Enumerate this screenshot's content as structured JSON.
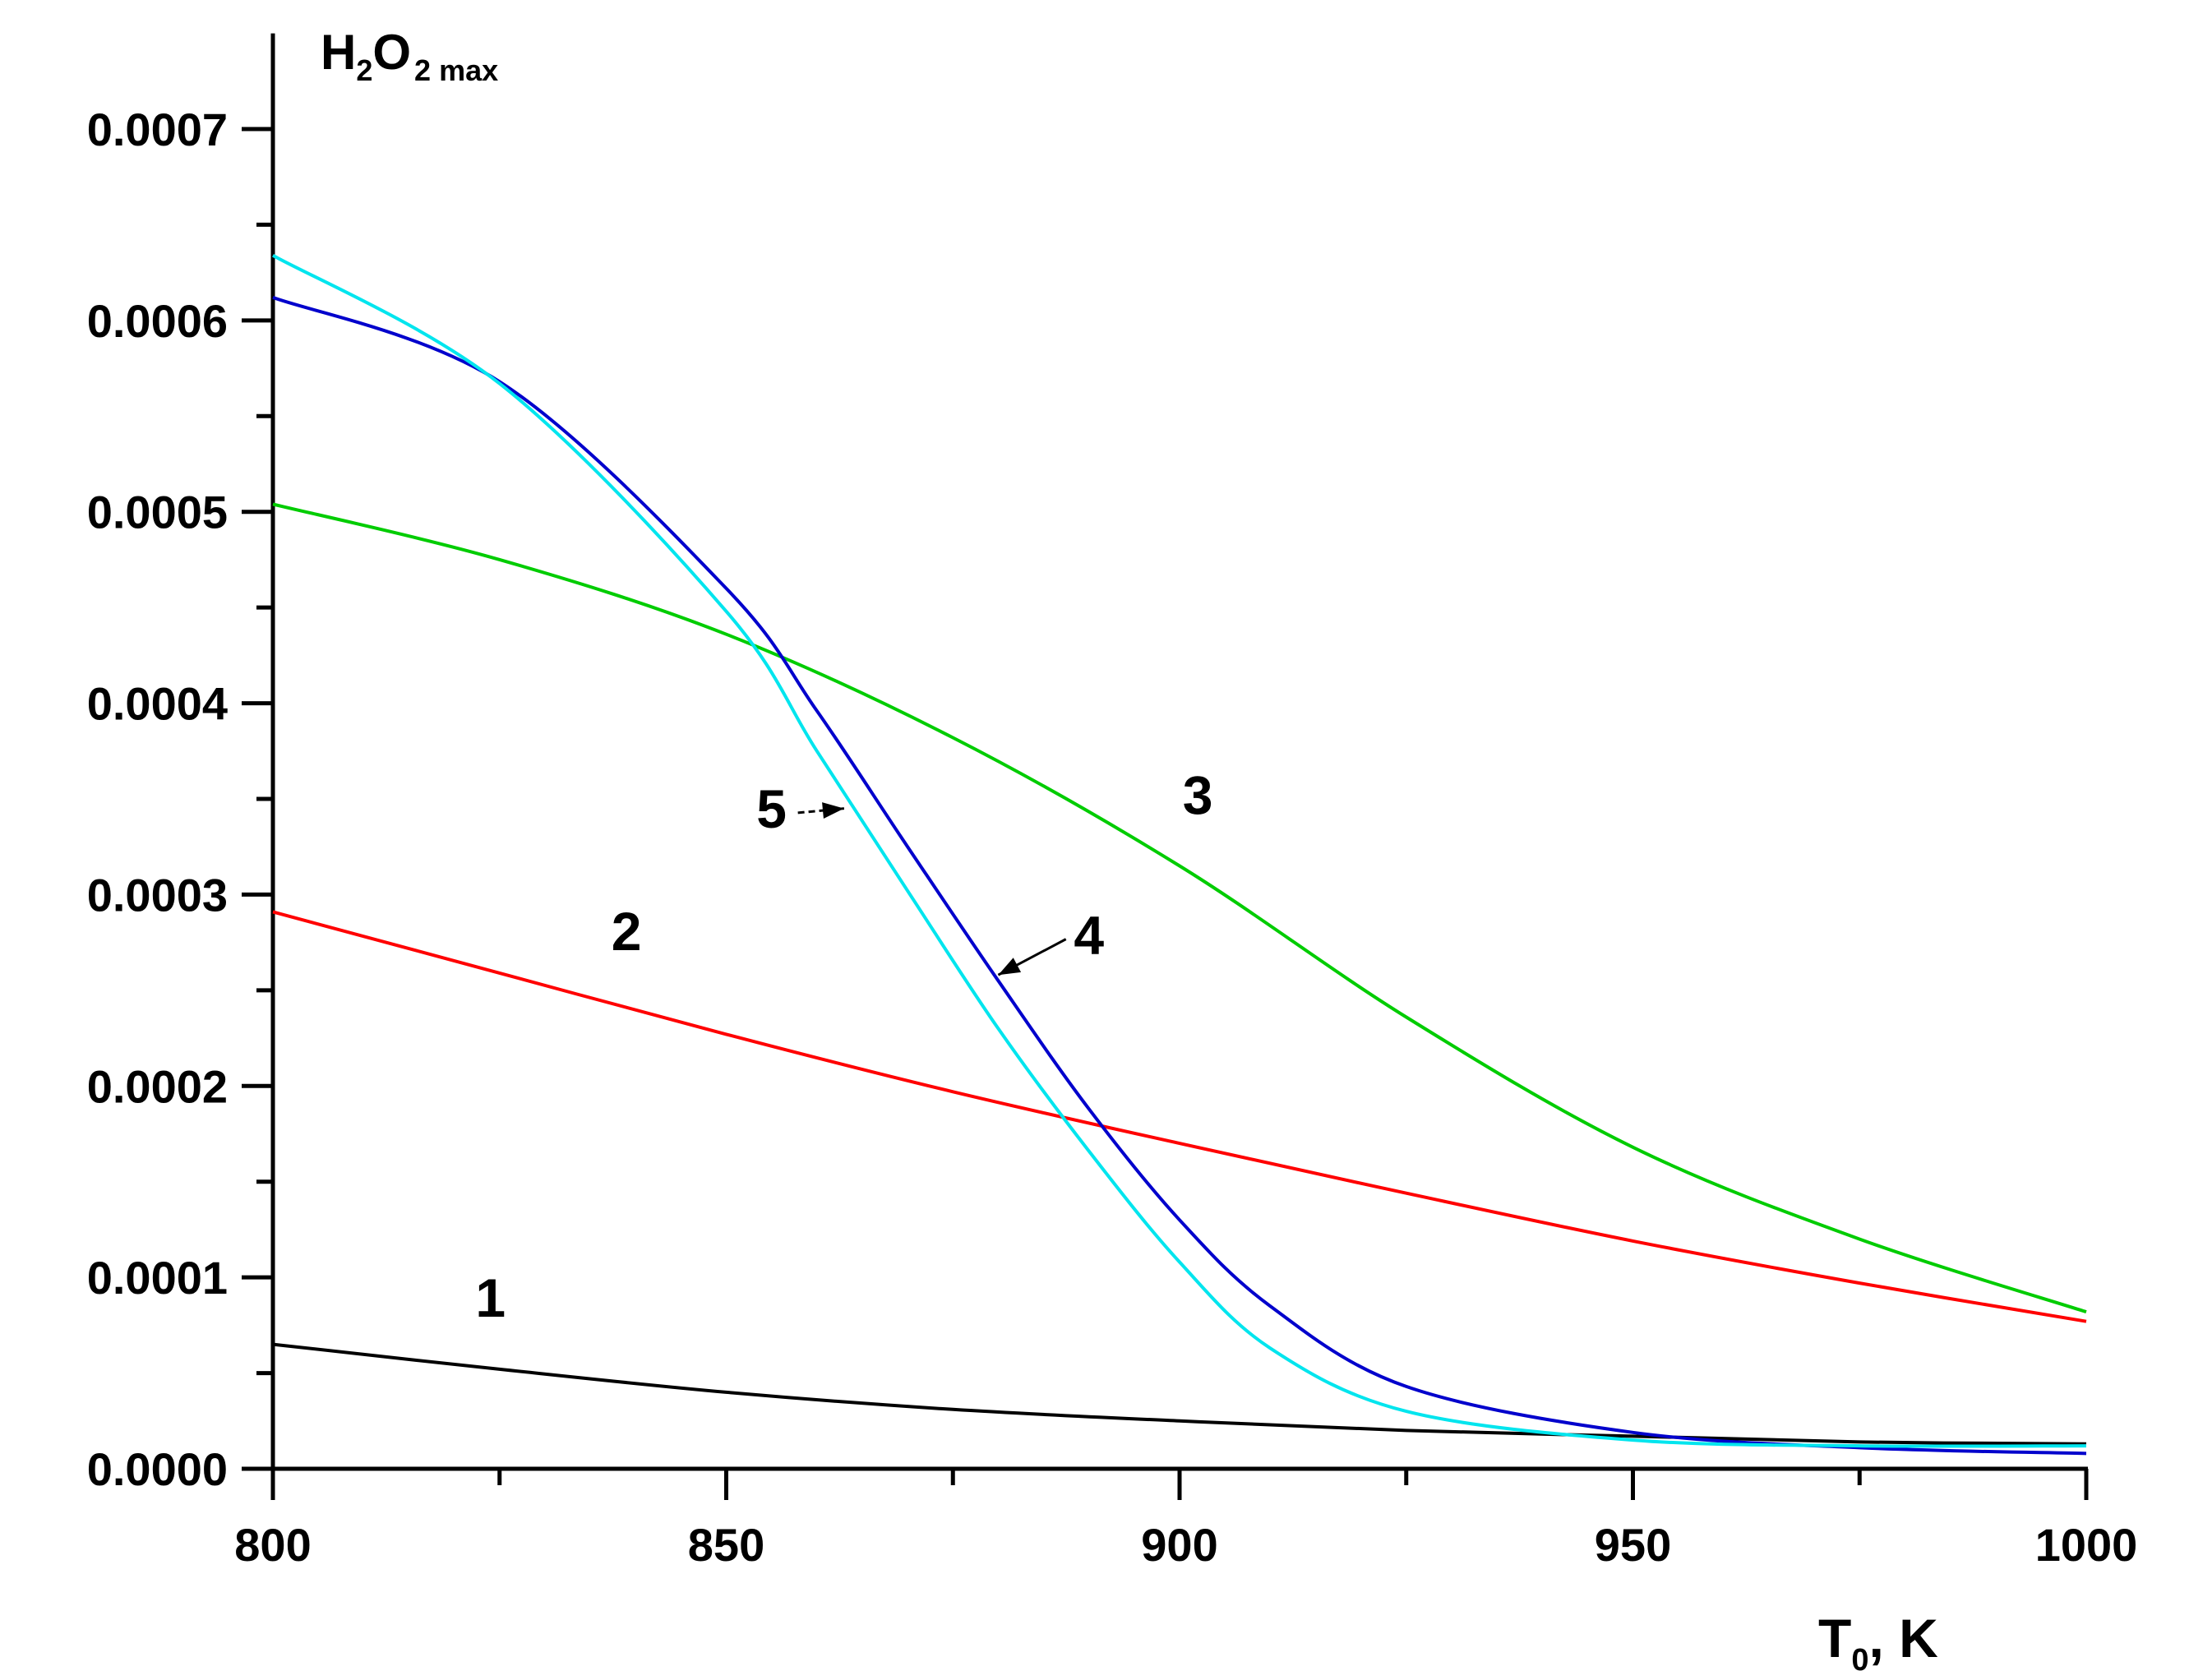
{
  "chart_data": {
    "type": "line",
    "title": "",
    "xlabel": {
      "main": "T",
      "sub": "0",
      "suffix": ", K"
    },
    "ylabel": {
      "main1": "H",
      "sub1": "2",
      "main2": "O",
      "sub2": "2 max"
    },
    "xlim": [
      800,
      1000
    ],
    "ylim": [
      0,
      0.00075
    ],
    "grid": false,
    "x_major_ticks": [
      800,
      850,
      900,
      950,
      1000
    ],
    "x_tick_labels": [
      "800",
      "850",
      "900",
      "950",
      "1000"
    ],
    "x_minor_ticks": [
      825,
      875,
      925,
      975
    ],
    "y_major_ticks": [
      0,
      0.0001,
      0.0002,
      0.0003,
      0.0004,
      0.0005,
      0.0006,
      0.0007
    ],
    "y_tick_labels": [
      "0.0000",
      "0.0001",
      "0.0002",
      "0.0003",
      "0.0004",
      "0.0005",
      "0.0006",
      "0.0007"
    ],
    "y_minor_ticks": [
      5e-05,
      0.00015,
      0.00025,
      0.00035,
      0.00045,
      0.00055,
      0.00065
    ],
    "series": [
      {
        "name": "1",
        "color": "#000000",
        "x": [
          800,
          825,
          850,
          875,
          900,
          925,
          950,
          975,
          1000
        ],
        "values": [
          6.5e-05,
          5.2e-05,
          4e-05,
          3.1e-05,
          2.5e-05,
          2e-05,
          1.7e-05,
          1.4e-05,
          1.3e-05
        ]
      },
      {
        "name": "2",
        "color": "#ff0000",
        "x": [
          800,
          825,
          850,
          875,
          900,
          925,
          950,
          975,
          1000
        ],
        "values": [
          0.000291,
          0.000259,
          0.000227,
          0.000197,
          0.00017,
          0.000144,
          0.000119,
          9.7e-05,
          7.7e-05
        ]
      },
      {
        "name": "3",
        "color": "#00cc00",
        "x": [
          800,
          825,
          850,
          875,
          900,
          925,
          950,
          975,
          1000
        ],
        "values": [
          0.000504,
          0.000475,
          0.000436,
          0.000382,
          0.000315,
          0.000236,
          0.000168,
          0.00012,
          8.2e-05
        ]
      },
      {
        "name": "4",
        "color": "#0000cc",
        "x": [
          800,
          825,
          850,
          860,
          870,
          880,
          890,
          900,
          910,
          925,
          950,
          975,
          1000
        ],
        "values": [
          0.000612,
          0.000568,
          0.00046,
          0.000396,
          0.000325,
          0.000255,
          0.000188,
          0.00013,
          8.5e-05,
          4.3e-05,
          1.9e-05,
          1.1e-05,
          8e-06
        ]
      },
      {
        "name": "5",
        "color": "#00e5ee",
        "x": [
          800,
          825,
          850,
          860,
          870,
          880,
          890,
          900,
          910,
          925,
          950,
          975,
          1000
        ],
        "values": [
          0.000634,
          0.000567,
          0.000448,
          0.000375,
          0.000302,
          0.00023,
          0.000166,
          0.000108,
          6.3e-05,
          3e-05,
          1.5e-05,
          1.2e-05,
          1.2e-05
        ]
      }
    ],
    "annotations": [
      {
        "label": "1",
        "x": 824,
        "y": 7.95e-05,
        "arrow": false
      },
      {
        "label": "2",
        "x": 839,
        "y": 0.000271,
        "arrow": false
      },
      {
        "label": "3",
        "x": 902,
        "y": 0.000342,
        "arrow": false
      },
      {
        "label": "4",
        "x": 890,
        "y": 0.000269,
        "arrow": true,
        "arrow_to": [
          880,
          0.000258
        ]
      },
      {
        "label": "5",
        "x": 855,
        "y": 0.000335,
        "arrow": true,
        "arrow_to": [
          863,
          0.000345
        ]
      }
    ]
  }
}
